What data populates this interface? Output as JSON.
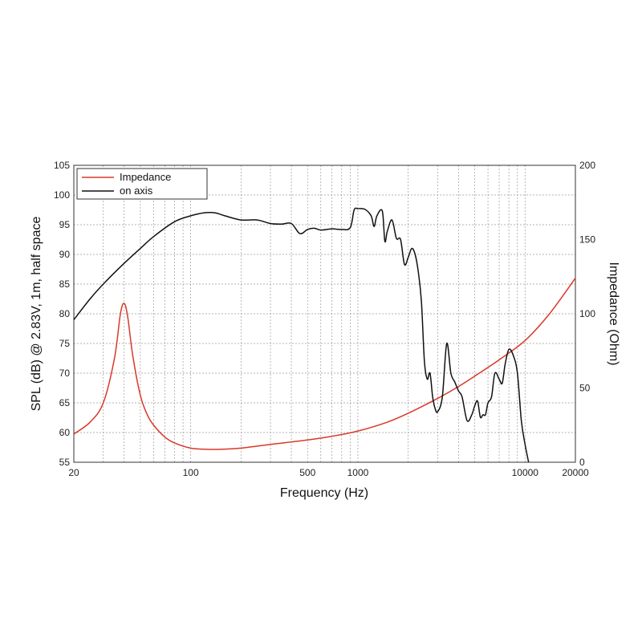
{
  "chart_data": {
    "type": "line",
    "xlabel": "Frequency (Hz)",
    "ylabel": "SPL (dB) @ 2.83V, 1m, half space",
    "y2label": "Impedance (Ohm)",
    "xscale": "log",
    "xlim": [
      20,
      20000
    ],
    "ylim": [
      55,
      105
    ],
    "y2lim": [
      0,
      200
    ],
    "grid": true,
    "legend_position": "top-left",
    "x_tick_labels": [
      {
        "value": 20,
        "label": "20"
      },
      {
        "value": 100,
        "label": "100"
      },
      {
        "value": 500,
        "label": "500"
      },
      {
        "value": 1000,
        "label": "1000"
      },
      {
        "value": 10000,
        "label": "10000"
      },
      {
        "value": 20000,
        "label": "20000"
      }
    ],
    "y_ticks": [
      55,
      60,
      65,
      70,
      75,
      80,
      85,
      90,
      95,
      100,
      105
    ],
    "y2_ticks": [
      0,
      50,
      100,
      150,
      200
    ],
    "series": [
      {
        "name": "Impedance",
        "axis": "right",
        "color": "#d9382a",
        "x": [
          20,
          25,
          30,
          35,
          38,
          40,
          42,
          45,
          50,
          55,
          60,
          70,
          80,
          100,
          120,
          150,
          200,
          300,
          500,
          700,
          1000,
          1500,
          2000,
          3000,
          4000,
          5000,
          7000,
          10000,
          14000,
          20000
        ],
        "y": [
          19,
          27,
          40,
          70,
          100,
          107,
          98,
          72,
          45,
          32,
          25,
          17,
          13,
          9.5,
          8.8,
          8.7,
          9.5,
          12,
          15,
          17.5,
          21,
          27,
          33,
          43,
          51,
          58,
          69,
          82,
          100,
          124
        ]
      },
      {
        "name": "on axis",
        "axis": "left",
        "color": "#111111",
        "x": [
          20,
          25,
          30,
          40,
          50,
          60,
          80,
          100,
          120,
          140,
          160,
          200,
          250,
          300,
          350,
          400,
          450,
          500,
          550,
          600,
          700,
          800,
          900,
          950,
          1000,
          1100,
          1200,
          1250,
          1300,
          1400,
          1450,
          1500,
          1600,
          1700,
          1800,
          1900,
          2000,
          2100,
          2200,
          2300,
          2400,
          2500,
          2600,
          2700,
          2800,
          2900,
          3000,
          3200,
          3400,
          3600,
          3800,
          4000,
          4200,
          4500,
          4800,
          5000,
          5200,
          5400,
          5600,
          5800,
          6000,
          6300,
          6600,
          7000,
          7300,
          7600,
          8000,
          8500,
          9000,
          9500,
          10000,
          10500
        ],
        "y": [
          79,
          82.5,
          85,
          88.5,
          91,
          93,
          95.5,
          96.5,
          97,
          97,
          96.5,
          95.8,
          95.8,
          95.2,
          95.1,
          95.2,
          93.5,
          94.2,
          94.4,
          94.1,
          94.3,
          94.2,
          94.5,
          97.5,
          97.7,
          97.6,
          96.5,
          94.7,
          96.5,
          97.3,
          92.2,
          93.9,
          95.8,
          92.7,
          92.5,
          88.3,
          89.5,
          91.0,
          90.0,
          87.0,
          82.0,
          72.0,
          69.0,
          70.0,
          66.0,
          64.0,
          63.5,
          66.0,
          75.0,
          70.0,
          68.5,
          67.0,
          66.0,
          62.0,
          63.0,
          64.5,
          65.3,
          62.6,
          63.0,
          63.0,
          65.0,
          66.0,
          70.0,
          69.0,
          68.3,
          71.5,
          74.0,
          73.0,
          70.0,
          62.0,
          58.0,
          55.0
        ]
      }
    ]
  }
}
